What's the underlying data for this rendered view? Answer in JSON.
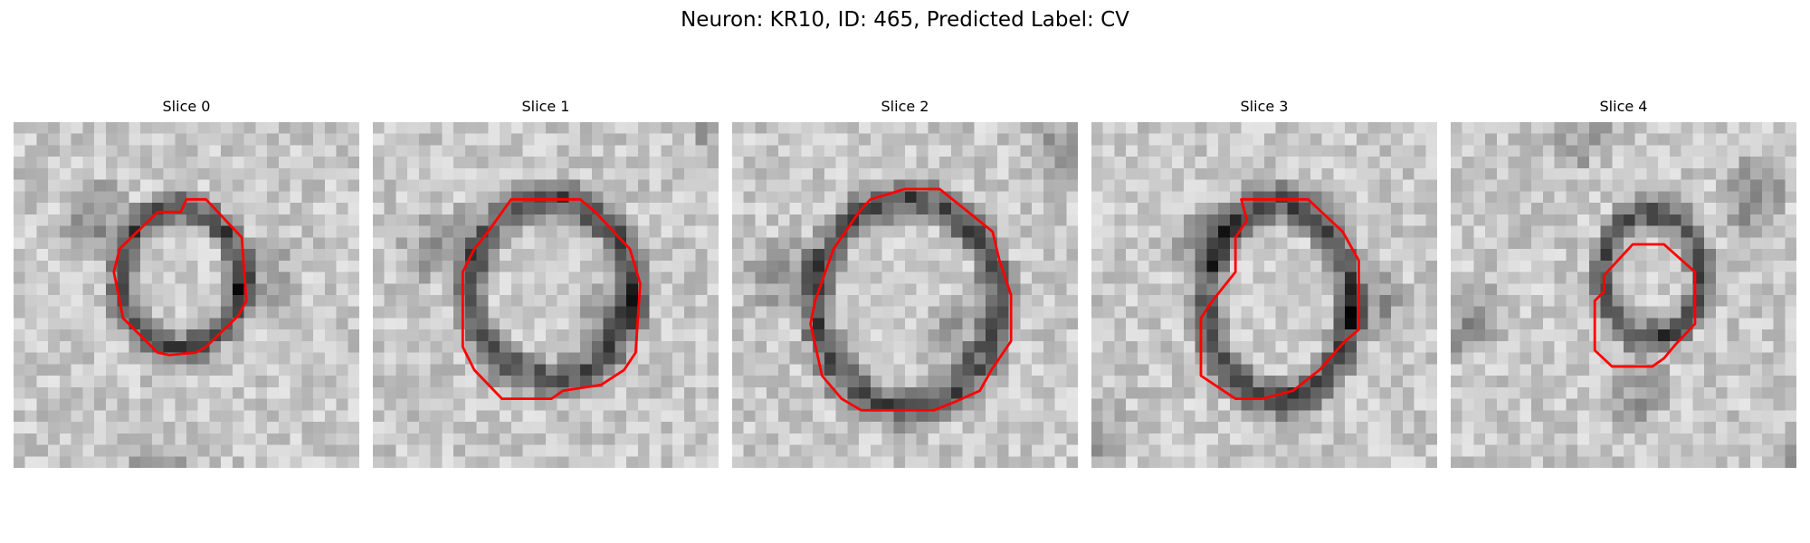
{
  "figure": {
    "title": "Neuron: KR10, ID: 465, Predicted Label: CV"
  },
  "colors": {
    "contour": "#ff0000"
  },
  "panels": [
    {
      "title": "Slice 0",
      "image": "grayscale EM patch with membrane-bounded circular profile, red segmentation contour"
    },
    {
      "title": "Slice 1",
      "image": "grayscale EM patch with membrane-bounded circular profile, red segmentation contour"
    },
    {
      "title": "Slice 2",
      "image": "grayscale EM patch with membrane-bounded circular profile, red segmentation contour"
    },
    {
      "title": "Slice 3",
      "image": "grayscale EM patch with membrane-bounded oval profile, red segmentation contour"
    },
    {
      "title": "Slice 4",
      "image": "grayscale EM patch with small membrane-bounded profile, red segmentation contour"
    }
  ]
}
